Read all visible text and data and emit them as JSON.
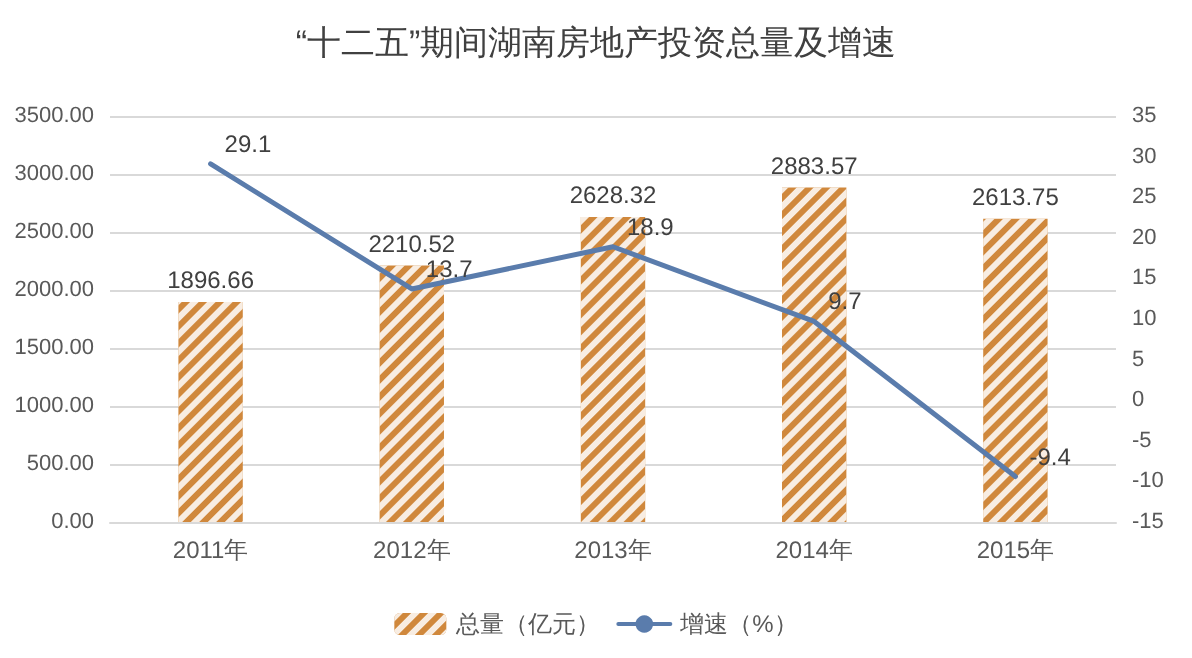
{
  "chart_data": {
    "type": "bar",
    "title": "“十二五”期间湖南房地产投资总量及增速",
    "categories": [
      "2011年",
      "2012年",
      "2013年",
      "2014年",
      "2015年"
    ],
    "series": [
      {
        "name": "总量（亿元）",
        "color": "#d0883c",
        "values": [
          1896.66,
          2210.52,
          2628.32,
          2883.57,
          2613.75
        ]
      },
      {
        "name": "增速（%）",
        "type": "line",
        "axis": "y2",
        "color": "#5a7cac",
        "values": [
          29.1,
          13.7,
          18.9,
          9.7,
          -9.4
        ]
      }
    ],
    "ylim": [
      0,
      3500
    ],
    "yticks": [
      {
        "value": 0,
        "label": "0.00"
      },
      {
        "value": 500,
        "label": "500.00"
      },
      {
        "value": 1000,
        "label": "1000.00"
      },
      {
        "value": 1500,
        "label": "1500.00"
      },
      {
        "value": 2000,
        "label": "2000.00"
      },
      {
        "value": 2500,
        "label": "2500.00"
      },
      {
        "value": 3000,
        "label": "3000.00"
      },
      {
        "value": 3500,
        "label": "3500.00"
      }
    ],
    "y2lim": [
      -15,
      35
    ],
    "y2ticks": [
      -15,
      -10,
      -5,
      0,
      5,
      10,
      15,
      20,
      25,
      30,
      35
    ],
    "data_labels": true,
    "grid": "y",
    "legend": "bottom",
    "marker": "none"
  }
}
